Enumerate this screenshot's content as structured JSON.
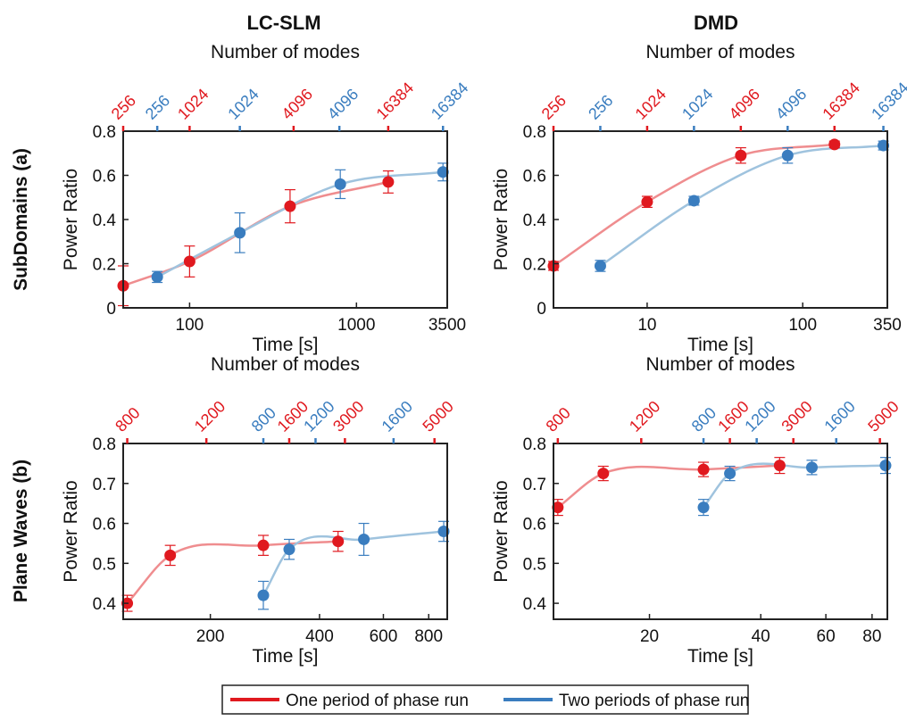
{
  "colors": {
    "series1": "#e0191f",
    "series2": "#3a7dbf",
    "curve1": "#ef8d8f",
    "curve2": "#9fc3de",
    "axis": "#222222"
  },
  "column_titles": [
    "LC-SLM",
    "DMD"
  ],
  "row_labels": [
    "SubDomains (a)",
    "Plane Waves (b)"
  ],
  "legend": {
    "entries": [
      "One period of phase run",
      "Two periods of phase run"
    ]
  },
  "chart_data": [
    {
      "type": "scatter",
      "title": "LC-SLM",
      "row": "SubDomains (a)",
      "xlabel": "Time [s]",
      "ylabel": "Power Ratio",
      "top_xlabel": "Number of modes",
      "xscale": "log",
      "xlim": [
        40,
        3500
      ],
      "ylim": [
        0,
        0.8
      ],
      "x_tick_values": [
        100,
        1000,
        3500
      ],
      "x_tick_labels": [
        "100",
        "1000",
        "3500"
      ],
      "y_ticks": [
        "0",
        "0.2",
        "0.4",
        "0.6",
        "0.8"
      ],
      "top_ticks": [
        {
          "label": "256",
          "series": 1,
          "x": 40
        },
        {
          "label": "256",
          "series": 2,
          "x": 64
        },
        {
          "label": "1024",
          "series": 1,
          "x": 100
        },
        {
          "label": "1024",
          "series": 2,
          "x": 200
        },
        {
          "label": "4096",
          "series": 1,
          "x": 420
        },
        {
          "label": "4096",
          "series": 2,
          "x": 790
        },
        {
          "label": "16384",
          "series": 1,
          "x": 1550
        },
        {
          "label": "16384",
          "series": 2,
          "x": 3300
        }
      ],
      "series": [
        {
          "name": "One period of phase run",
          "x": [
            40,
            100,
            400,
            1550
          ],
          "y": [
            0.1,
            0.21,
            0.46,
            0.57
          ],
          "err": [
            0.09,
            0.07,
            0.075,
            0.05
          ]
        },
        {
          "name": "Two periods of phase run",
          "x": [
            64,
            200,
            800,
            3300
          ],
          "y": [
            0.14,
            0.34,
            0.56,
            0.615
          ],
          "err": [
            0.025,
            0.09,
            0.065,
            0.04
          ]
        }
      ]
    },
    {
      "type": "scatter",
      "title": "DMD",
      "row": "SubDomains (a)",
      "xlabel": "Time [s]",
      "ylabel": "Power Ratio",
      "top_xlabel": "Number of modes",
      "xscale": "log",
      "xlim": [
        2.5,
        350
      ],
      "ylim": [
        0,
        0.8
      ],
      "x_tick_values": [
        10,
        100,
        350
      ],
      "x_tick_labels": [
        "10",
        "100",
        "350"
      ],
      "y_ticks": [
        "0",
        "0.2",
        "0.4",
        "0.6",
        "0.8"
      ],
      "top_ticks": [
        {
          "label": "256",
          "series": 1,
          "x": 2.5
        },
        {
          "label": "256",
          "series": 2,
          "x": 5
        },
        {
          "label": "1024",
          "series": 1,
          "x": 10
        },
        {
          "label": "1024",
          "series": 2,
          "x": 20
        },
        {
          "label": "4096",
          "series": 1,
          "x": 40
        },
        {
          "label": "4096",
          "series": 2,
          "x": 80
        },
        {
          "label": "16384",
          "series": 1,
          "x": 160
        },
        {
          "label": "16384",
          "series": 2,
          "x": 330
        }
      ],
      "series": [
        {
          "name": "One period of phase run",
          "x": [
            2.5,
            10,
            40,
            160
          ],
          "y": [
            0.19,
            0.48,
            0.69,
            0.74
          ],
          "err": [
            0.02,
            0.025,
            0.035,
            0.015
          ]
        },
        {
          "name": "Two periods of phase run",
          "x": [
            5,
            20,
            80,
            330
          ],
          "y": [
            0.19,
            0.485,
            0.69,
            0.735
          ],
          "err": [
            0.025,
            0.02,
            0.035,
            0.02
          ]
        }
      ]
    },
    {
      "type": "scatter",
      "title": "LC-SLM",
      "row": "Plane Waves (b)",
      "xlabel": "Time [s]",
      "ylabel": "Power Ratio",
      "top_xlabel": "Number of modes",
      "xscale": "log",
      "xlim": [
        115,
        900
      ],
      "ylim": [
        0.36,
        0.8
      ],
      "x_tick_values": [
        200,
        400,
        600,
        800
      ],
      "x_tick_labels": [
        "200",
        "400",
        "600",
        "800"
      ],
      "y_ticks": [
        "0.4",
        "0.5",
        "0.6",
        "0.7",
        "0.8"
      ],
      "top_ticks": [
        {
          "label": "800",
          "series": 1,
          "x": 118
        },
        {
          "label": "1200",
          "series": 1,
          "x": 195
        },
        {
          "label": "800",
          "series": 2,
          "x": 280
        },
        {
          "label": "1600",
          "series": 1,
          "x": 330
        },
        {
          "label": "1200",
          "series": 2,
          "x": 390
        },
        {
          "label": "3000",
          "series": 1,
          "x": 470
        },
        {
          "label": "1600",
          "series": 2,
          "x": 640
        },
        {
          "label": "5000",
          "series": 1,
          "x": 830
        }
      ],
      "series": [
        {
          "name": "One period of phase run",
          "x": [
            118,
            155,
            280,
            450
          ],
          "y": [
            0.4,
            0.52,
            0.545,
            0.555
          ],
          "err": [
            0.02,
            0.025,
            0.025,
            0.025
          ]
        },
        {
          "name": "Two periods of phase run",
          "x": [
            280,
            330,
            530,
            880
          ],
          "y": [
            0.42,
            0.535,
            0.56,
            0.58
          ],
          "err": [
            0.035,
            0.025,
            0.04,
            0.025
          ]
        }
      ]
    },
    {
      "type": "scatter",
      "title": "DMD",
      "row": "Plane Waves (b)",
      "xlabel": "Time [s]",
      "ylabel": "Power Ratio",
      "top_xlabel": "Number of modes",
      "xscale": "log",
      "xlim": [
        11,
        88
      ],
      "ylim": [
        0.36,
        0.8
      ],
      "x_tick_values": [
        20,
        40,
        60,
        80
      ],
      "x_tick_labels": [
        "20",
        "40",
        "60",
        "80"
      ],
      "y_ticks": [
        "0.4",
        "0.5",
        "0.6",
        "0.7",
        "0.8"
      ],
      "top_ticks": [
        {
          "label": "800",
          "series": 1,
          "x": 11.3
        },
        {
          "label": "1200",
          "series": 1,
          "x": 19
        },
        {
          "label": "800",
          "series": 2,
          "x": 28
        },
        {
          "label": "1600",
          "series": 1,
          "x": 33
        },
        {
          "label": "1200",
          "series": 2,
          "x": 39
        },
        {
          "label": "3000",
          "series": 1,
          "x": 49
        },
        {
          "label": "1600",
          "series": 2,
          "x": 64
        },
        {
          "label": "5000",
          "series": 1,
          "x": 84
        }
      ],
      "series": [
        {
          "name": "One period of phase run",
          "x": [
            11.3,
            15,
            28,
            45
          ],
          "y": [
            0.64,
            0.725,
            0.735,
            0.745
          ],
          "err": [
            0.02,
            0.018,
            0.018,
            0.02
          ]
        },
        {
          "name": "Two periods of phase run",
          "x": [
            28,
            33,
            55,
            87
          ],
          "y": [
            0.64,
            0.725,
            0.74,
            0.745
          ],
          "err": [
            0.02,
            0.018,
            0.018,
            0.02
          ]
        }
      ]
    }
  ]
}
